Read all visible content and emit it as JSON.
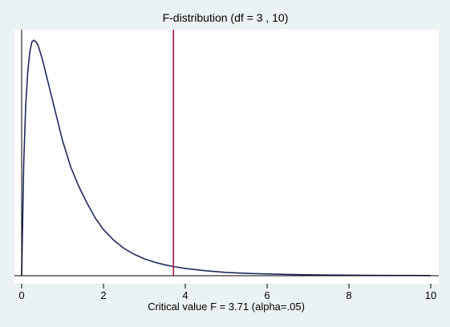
{
  "chart_data": {
    "type": "line",
    "title": "F-distribution (df = 3 , 10)",
    "xlabel": "Critical value F = 3.71  (alpha=.05)",
    "ylabel": "",
    "xlim": [
      0,
      10
    ],
    "ylim": [
      0,
      0.73
    ],
    "x_ticks": [
      0,
      2,
      4,
      6,
      8,
      10
    ],
    "y_ticks": [],
    "grid": false,
    "legend": "none",
    "df1": 3,
    "df2": 10,
    "critical_value": 3.71,
    "alpha": 0.05,
    "colors": {
      "background": "#EAF2F3",
      "plot_area": "#FFFFFF",
      "curve": "#1F2A5A",
      "critical_line": "#A0174B",
      "axis": "#000000"
    },
    "series": [
      {
        "x": [
          0.01,
          0.05,
          0.1,
          0.15,
          0.2,
          0.25,
          0.3,
          0.35,
          0.4,
          0.5,
          0.6,
          0.7,
          0.8,
          0.9,
          1.0,
          1.2,
          1.4,
          1.6,
          1.8,
          2.0,
          2.25,
          2.5,
          2.75,
          3.0,
          3.25,
          3.5,
          3.71,
          4.0,
          4.5,
          5.0,
          5.5,
          6.0,
          6.5,
          7.0,
          7.5,
          8.0,
          8.5,
          9.0,
          9.5,
          10.0
        ],
        "y": [
          0.07,
          0.34,
          0.52,
          0.62,
          0.68,
          0.71,
          0.715,
          0.71,
          0.7,
          0.66,
          0.61,
          0.56,
          0.51,
          0.46,
          0.41,
          0.33,
          0.27,
          0.22,
          0.175,
          0.14,
          0.108,
          0.083,
          0.065,
          0.051,
          0.041,
          0.033,
          0.028,
          0.022,
          0.015,
          0.01,
          0.0072,
          0.0052,
          0.0038,
          0.0028,
          0.0021,
          0.0016,
          0.0012,
          0.0009,
          0.0007,
          0.0005
        ]
      }
    ]
  }
}
